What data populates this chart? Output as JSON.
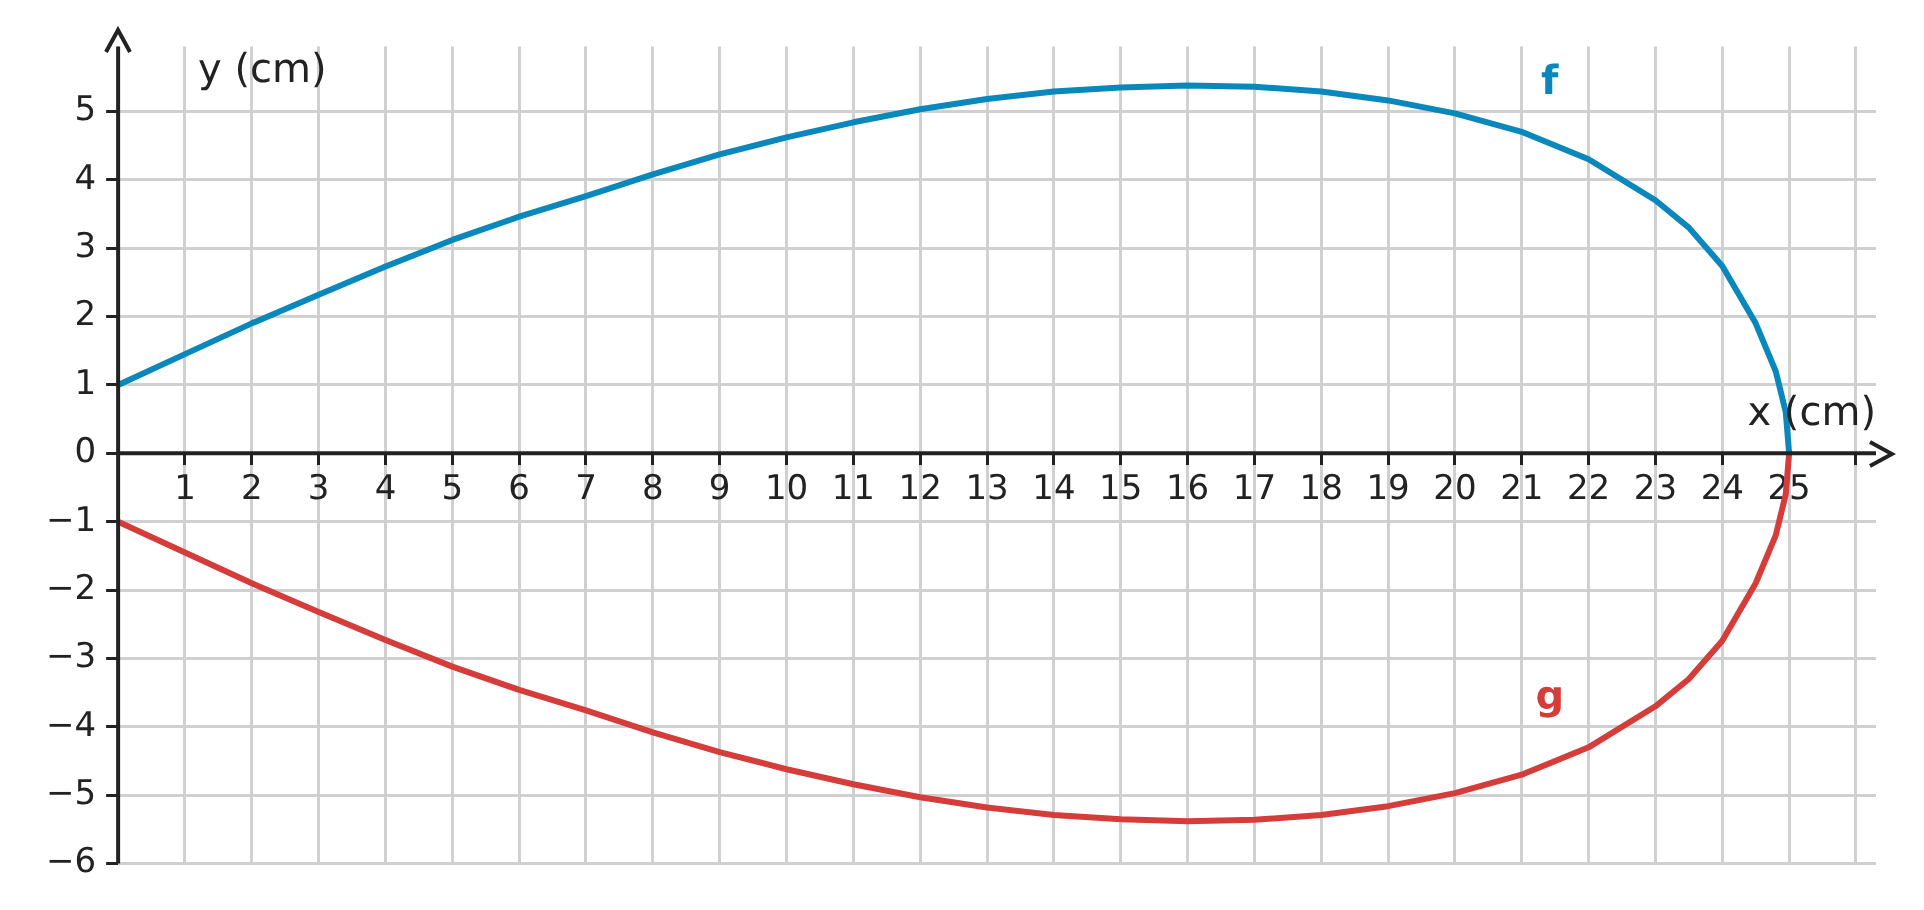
{
  "chart_data": {
    "type": "line",
    "xlabel": "x (cm)",
    "ylabel": "y (cm)",
    "xlim": [
      0,
      26.3
    ],
    "ylim": [
      -6,
      5.95
    ],
    "xticks": [
      {
        "value": 0,
        "label": null
      },
      1,
      2,
      3,
      4,
      5,
      6,
      7,
      8,
      9,
      10,
      11,
      12,
      13,
      14,
      15,
      16,
      17,
      18,
      19,
      20,
      21,
      22,
      23,
      24,
      25,
      {
        "value": 26,
        "label": null
      }
    ],
    "yticks": [
      -6,
      -5,
      -4,
      -3,
      -2,
      -1,
      0,
      1,
      2,
      3,
      4,
      5
    ],
    "grid": true,
    "marker": "none",
    "line_style": "solid",
    "legend": false,
    "series": [
      {
        "name": "f",
        "color": "#0a88bb",
        "x": [
          0,
          1,
          2,
          3,
          4,
          5,
          6,
          7,
          8,
          9,
          10,
          11,
          12,
          13,
          14,
          15,
          16,
          17,
          18,
          19,
          20,
          21,
          22,
          23,
          23.5,
          24,
          24.5,
          24.8,
          24.95,
          25
        ],
        "values": [
          1,
          1.45,
          1.9,
          2.32,
          2.73,
          3.12,
          3.46,
          3.76,
          4.08,
          4.37,
          4.62,
          4.84,
          5.03,
          5.18,
          5.29,
          5.35,
          5.38,
          5.36,
          5.29,
          5.16,
          4.97,
          4.7,
          4.3,
          3.7,
          3.3,
          2.74,
          1.9,
          1.2,
          0.6,
          0
        ]
      },
      {
        "name": "g",
        "color": "#d43d3a",
        "x": [
          0,
          1,
          2,
          3,
          4,
          5,
          6,
          7,
          8,
          9,
          10,
          11,
          12,
          13,
          14,
          15,
          16,
          17,
          18,
          19,
          20,
          21,
          22,
          23,
          23.5,
          24,
          24.5,
          24.8,
          24.95,
          25
        ],
        "values": [
          -1,
          -1.45,
          -1.9,
          -2.32,
          -2.73,
          -3.12,
          -3.46,
          -3.76,
          -4.08,
          -4.37,
          -4.62,
          -4.84,
          -5.03,
          -5.18,
          -5.29,
          -5.35,
          -5.38,
          -5.36,
          -5.29,
          -5.16,
          -4.97,
          -4.7,
          -4.3,
          -3.7,
          -3.3,
          -2.74,
          -1.9,
          -1.2,
          -0.6,
          0
        ]
      }
    ]
  }
}
